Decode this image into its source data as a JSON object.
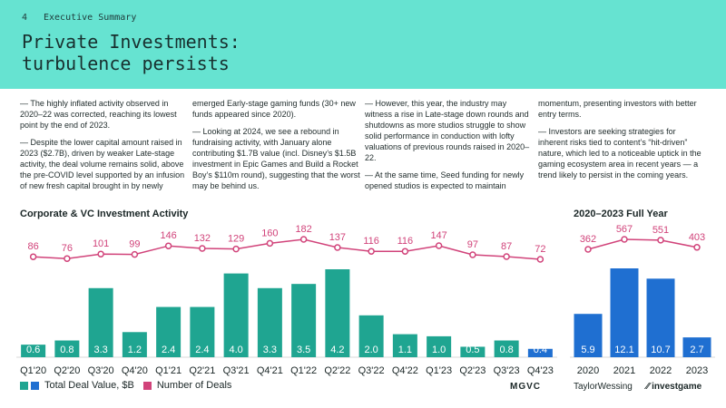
{
  "header": {
    "page_number": "4",
    "section": "Executive Summary",
    "title": "Private Investments:\nturbulence persists"
  },
  "text_columns": [
    [
      "— The highly inflated activity observed in 2020–22 was corrected, reaching its lowest point by the end of 2023.",
      "— Despite the lower capital amount raised in 2023 ($2.7B), driven by weaker Late-stage activity, the deal volume remains solid, above the pre-COVID level supported by an infusion of new fresh capital brought in by newly"
    ],
    [
      "emerged Early-stage gaming funds (30+ new funds appeared since 2020).",
      "— Looking at 2024, we see a rebound in fundraising activity, with January alone contributing $1.7B value (incl. Disney’s $1.5B investment in Epic Games and Build a Rocket Boy’s $110m round), suggesting that the worst may be behind us."
    ],
    [
      "— However, this year, the industry may witness a rise in Late-stage down rounds and shutdowns as more studios struggle to show solid performance in conduction with lofty valuations of previous rounds raised in 2020–22.",
      "— At the same time, Seed funding for newly opened studios is expected to maintain"
    ],
    [
      "momentum, presenting investors with better entry terms.",
      "— Investors are seeking strategies for inherent risks tied to content’s “hit-driven” nature, which led to a noticeable uptick in the gaming ecosystem area in recent years — a trend likely to persist in the coming years."
    ]
  ],
  "legend": {
    "value_label": "Total Deal Value, $B",
    "deals_label": "Number of Deals"
  },
  "logos": [
    "MGVC",
    "TaylorWessing",
    "investgame"
  ],
  "colors": {
    "header_bg": "#66e3d1",
    "teal": "#1fa591",
    "blue": "#1f6fd1",
    "pink": "#d1437a"
  },
  "chart_data": [
    {
      "type": "bar",
      "title": "Corporate & VC Investment Activity",
      "categories": [
        "Q1'20",
        "Q2'20",
        "Q3'20",
        "Q4'20",
        "Q1'21",
        "Q2'21",
        "Q3'21",
        "Q4'21",
        "Q1'22",
        "Q2'22",
        "Q3'22",
        "Q4'22",
        "Q1'23",
        "Q2'23",
        "Q3'23",
        "Q4'23"
      ],
      "series": [
        {
          "name": "Total Deal Value, $B",
          "values": [
            0.6,
            0.8,
            3.3,
            1.2,
            2.4,
            2.4,
            4.0,
            3.3,
            3.5,
            4.2,
            2.0,
            1.1,
            1.0,
            0.5,
            0.8,
            0.4
          ]
        },
        {
          "name": "Number of Deals",
          "values": [
            86,
            76,
            101,
            99,
            146,
            132,
            129,
            160,
            182,
            137,
            116,
            116,
            147,
            97,
            87,
            72
          ]
        }
      ],
      "grid": false
    },
    {
      "type": "bar",
      "title": "2020–2023 Full Year",
      "categories": [
        "2020",
        "2021",
        "2022",
        "2023"
      ],
      "series": [
        {
          "name": "Total Deal Value, $B",
          "values": [
            5.9,
            12.1,
            10.7,
            2.7
          ]
        },
        {
          "name": "Number of Deals",
          "values": [
            362,
            567,
            551,
            403
          ]
        }
      ],
      "grid": false
    }
  ]
}
